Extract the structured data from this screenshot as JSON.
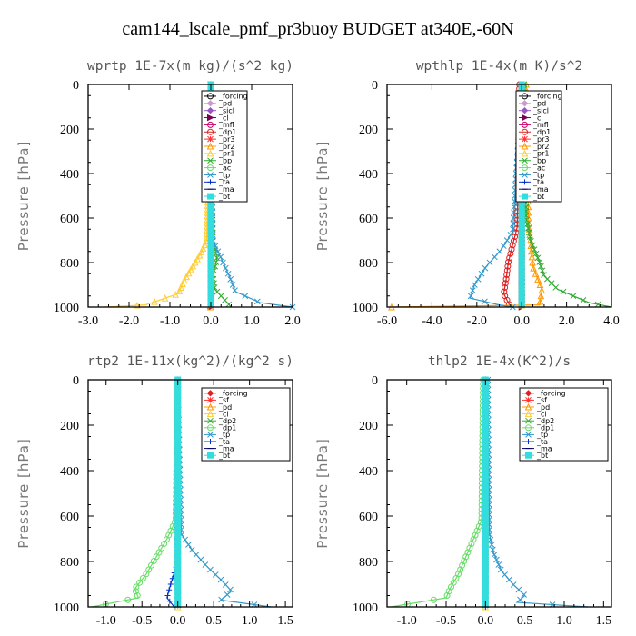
{
  "title": "cam144_lscale_pmf_pr3buoy  BUDGET at340E,-60N",
  "chart_data": [
    {
      "type": "line",
      "title": "wprtp  1E-7x(m kg)/(s^2 kg)",
      "ylabel": "Pressure [hPa]",
      "xlim": [
        -3.0,
        2.0
      ],
      "ylim": [
        1000,
        0
      ],
      "xticks": [
        "-3.0",
        "-2.0",
        "-1.0",
        "0.0",
        "1.0",
        "2.0"
      ],
      "yticks": [
        "0",
        "200",
        "400",
        "600",
        "800",
        "1000"
      ],
      "legend_position": "top-right",
      "series": [
        {
          "name": "_forcing",
          "color": "#000000",
          "marker": "circle",
          "y": [
            0,
            1000
          ],
          "x": [
            0,
            0
          ]
        },
        {
          "name": "_pd",
          "color": "#cc99cc",
          "marker": "diamond",
          "y": [
            0,
            1000
          ],
          "x": [
            0,
            0
          ]
        },
        {
          "name": "_sicl",
          "color": "#9955cc",
          "marker": "diamond",
          "y": [
            0,
            1000
          ],
          "x": [
            0,
            0
          ]
        },
        {
          "name": "_cl",
          "color": "#7a0050",
          "marker": "triangle-right",
          "y": [
            0,
            1000
          ],
          "x": [
            0,
            0
          ]
        },
        {
          "name": "_mfl",
          "color": "#cc0066",
          "marker": "circle",
          "y": [
            0,
            1000
          ],
          "x": [
            0,
            0
          ]
        },
        {
          "name": "_dp1",
          "color": "#dd2222",
          "marker": "circle",
          "y": [
            0,
            1000
          ],
          "x": [
            0,
            0
          ]
        },
        {
          "name": "_pr3",
          "color": "#ff3333",
          "marker": "star",
          "y": [
            0,
            1000
          ],
          "x": [
            0,
            0
          ]
        },
        {
          "name": "_pr2",
          "color": "#ff9900",
          "marker": "triangle",
          "y": [
            0,
            1000
          ],
          "x": [
            0,
            0
          ]
        },
        {
          "name": "_pr1",
          "color": "#ffcc33",
          "marker": "triangle",
          "y": [
            0,
            700,
            760,
            820,
            880,
            940,
            990,
            1000
          ],
          "x": [
            0,
            -0.1,
            -0.25,
            -0.45,
            -0.65,
            -0.8,
            -1.6,
            -2.6
          ]
        },
        {
          "name": "_bp",
          "color": "#33aa33",
          "marker": "x",
          "y": [
            0,
            700,
            780,
            860,
            920,
            970,
            1000
          ],
          "x": [
            0,
            0.05,
            0.15,
            0.05,
            0.1,
            0.35,
            0.5
          ]
        },
        {
          "name": "_ac",
          "color": "#66dd66",
          "marker": "circle",
          "y": [
            0,
            1000
          ],
          "x": [
            0,
            0
          ]
        },
        {
          "name": "_tp",
          "color": "#3399cc",
          "marker": "x",
          "y": [
            0,
            700,
            780,
            860,
            930,
            980,
            1000
          ],
          "x": [
            0,
            0.05,
            0.25,
            0.45,
            0.6,
            1.2,
            2.0
          ]
        },
        {
          "name": "_ta",
          "color": "#0033cc",
          "marker": "plus",
          "y": [
            0,
            1000
          ],
          "x": [
            0,
            0
          ]
        },
        {
          "name": "_ma",
          "color": "#000066",
          "marker": "dash",
          "y": [
            0,
            1000
          ],
          "x": [
            0,
            0
          ]
        },
        {
          "name": "_bt",
          "color": "#33dddd",
          "marker": "square",
          "y": [
            0,
            1000
          ],
          "x": [
            0,
            0
          ]
        }
      ]
    },
    {
      "type": "line",
      "title": "wpthlp  1E-4x(m K)/s^2",
      "ylabel": "Pressure [hPa]",
      "xlim": [
        -6.0,
        4.0
      ],
      "ylim": [
        1000,
        0
      ],
      "xticks": [
        "-6.0",
        "-4.0",
        "-2.0",
        "0.0",
        "2.0",
        "4.0"
      ],
      "yticks": [
        "0",
        "200",
        "400",
        "600",
        "800",
        "1000"
      ],
      "legend_position": "top-right",
      "series": [
        {
          "name": "_forcing",
          "color": "#000000",
          "marker": "circle",
          "y": [
            0,
            1000
          ],
          "x": [
            0,
            0
          ]
        },
        {
          "name": "_pd",
          "color": "#cc99cc",
          "marker": "diamond",
          "y": [
            0,
            1000
          ],
          "x": [
            0,
            0
          ]
        },
        {
          "name": "_sicl",
          "color": "#9955cc",
          "marker": "diamond",
          "y": [
            0,
            1000
          ],
          "x": [
            0,
            0
          ]
        },
        {
          "name": "_cl",
          "color": "#7a0050",
          "marker": "triangle-right",
          "y": [
            0,
            1000
          ],
          "x": [
            0,
            0
          ]
        },
        {
          "name": "_mfl",
          "color": "#cc0066",
          "marker": "circle",
          "y": [
            0,
            1000
          ],
          "x": [
            0,
            0
          ]
        },
        {
          "name": "_dp1",
          "color": "#dd2222",
          "marker": "circle",
          "y": [
            0,
            640,
            720,
            800,
            880,
            940,
            1000
          ],
          "x": [
            -0.1,
            -0.2,
            -0.4,
            -0.6,
            -0.7,
            -0.8,
            -0.5
          ]
        },
        {
          "name": "_pr3",
          "color": "#ff3333",
          "marker": "star",
          "y": [
            0,
            1000
          ],
          "x": [
            0,
            0
          ]
        },
        {
          "name": "_pr2",
          "color": "#ff9900",
          "marker": "triangle",
          "y": [
            0,
            600,
            720,
            820,
            920,
            990,
            1000
          ],
          "x": [
            0.2,
            0.3,
            0.4,
            0.5,
            0.9,
            0.8,
            -5.8
          ]
        },
        {
          "name": "_pr1",
          "color": "#ffcc33",
          "marker": "triangle",
          "y": [
            0,
            1000
          ],
          "x": [
            0,
            0
          ]
        },
        {
          "name": "_bp",
          "color": "#33aa33",
          "marker": "x",
          "y": [
            0,
            600,
            700,
            800,
            860,
            920,
            980,
            1000
          ],
          "x": [
            0.1,
            0.2,
            0.4,
            0.8,
            1.0,
            1.6,
            3.0,
            4.0
          ]
        },
        {
          "name": "_ac",
          "color": "#66dd66",
          "marker": "circle",
          "y": [
            0,
            1000
          ],
          "x": [
            0,
            0
          ]
        },
        {
          "name": "_tp",
          "color": "#3399cc",
          "marker": "x",
          "y": [
            0,
            660,
            740,
            820,
            900,
            960,
            990,
            1000
          ],
          "x": [
            0,
            -0.4,
            -0.9,
            -1.6,
            -2.1,
            -2.3,
            -1.0,
            -0.4
          ]
        },
        {
          "name": "_ta",
          "color": "#0033cc",
          "marker": "plus",
          "y": [
            0,
            1000
          ],
          "x": [
            0,
            0
          ]
        },
        {
          "name": "_ma",
          "color": "#000066",
          "marker": "dash",
          "y": [
            0,
            1000
          ],
          "x": [
            0,
            0
          ]
        },
        {
          "name": "_bt",
          "color": "#33dddd",
          "marker": "square",
          "y": [
            0,
            1000
          ],
          "x": [
            0,
            0
          ]
        }
      ]
    },
    {
      "type": "line",
      "title": "rtp2  1E-11x(kg^2)/(kg^2 s)",
      "ylabel": "Pressure [hPa]",
      "xlim": [
        -1.25,
        1.6
      ],
      "ylim": [
        1000,
        0
      ],
      "xticks": [
        "-1.0",
        "-0.5",
        "0.0",
        "0.5",
        "1.0",
        "1.5"
      ],
      "xtick_values": [
        -1.0,
        -0.5,
        0.0,
        0.5,
        1.0,
        1.5
      ],
      "yticks": [
        "0",
        "200",
        "400",
        "600",
        "800",
        "1000"
      ],
      "legend_position": "top-right",
      "series": [
        {
          "name": "_forcing",
          "color": "#dd2222",
          "marker": "diamond",
          "y": [
            0,
            1000
          ],
          "x": [
            0,
            0
          ]
        },
        {
          "name": "_sf",
          "color": "#ff3333",
          "marker": "star",
          "y": [
            0,
            1000
          ],
          "x": [
            0,
            0
          ]
        },
        {
          "name": "_pd",
          "color": "#ff9900",
          "marker": "triangle",
          "y": [
            0,
            1000
          ],
          "x": [
            0,
            0
          ]
        },
        {
          "name": "_cl",
          "color": "#ffcc33",
          "marker": "triangle",
          "y": [
            0,
            1000
          ],
          "x": [
            0,
            0
          ]
        },
        {
          "name": "_dp2",
          "color": "#33aa33",
          "marker": "x",
          "y": [
            0,
            1000
          ],
          "x": [
            0,
            0
          ]
        },
        {
          "name": "_dp1",
          "color": "#66dd66",
          "marker": "circle",
          "y": [
            0,
            620,
            700,
            780,
            860,
            920,
            960,
            1000
          ],
          "x": [
            0,
            -0.03,
            -0.15,
            -0.3,
            -0.45,
            -0.6,
            -0.55,
            -1.2
          ]
        },
        {
          "name": "_tp",
          "color": "#3399cc",
          "marker": "x",
          "y": [
            0,
            680,
            750,
            820,
            880,
            930,
            970,
            1000
          ],
          "x": [
            0,
            0.05,
            0.2,
            0.4,
            0.6,
            0.75,
            0.6,
            1.3
          ]
        },
        {
          "name": "_ta",
          "color": "#0033cc",
          "marker": "plus",
          "y": [
            0,
            820,
            900,
            960,
            1000
          ],
          "x": [
            0,
            -0.02,
            -0.1,
            -0.15,
            -0.05
          ]
        },
        {
          "name": "_ma",
          "color": "#000066",
          "marker": "dash",
          "y": [
            0,
            1000
          ],
          "x": [
            0,
            0
          ]
        },
        {
          "name": "_bt",
          "color": "#33dddd",
          "marker": "square",
          "y": [
            0,
            1000
          ],
          "x": [
            0,
            0
          ]
        }
      ]
    },
    {
      "type": "line",
      "title": "thlp2  1E-4x(K^2)/s",
      "ylabel": "Pressure [hPa]",
      "xlim": [
        -1.25,
        1.6
      ],
      "ylim": [
        1000,
        0
      ],
      "xticks": [
        "-1.0",
        "-0.5",
        "0.0",
        "0.5",
        "1.0",
        "1.5"
      ],
      "xtick_values": [
        -1.0,
        -0.5,
        0.0,
        0.5,
        1.0,
        1.5
      ],
      "yticks": [
        "0",
        "200",
        "400",
        "600",
        "800",
        "1000"
      ],
      "legend_position": "top-right",
      "series": [
        {
          "name": "_forcing",
          "color": "#dd2222",
          "marker": "diamond",
          "y": [
            0,
            1000
          ],
          "x": [
            0,
            0
          ]
        },
        {
          "name": "_sf",
          "color": "#ff3333",
          "marker": "star",
          "y": [
            0,
            1000
          ],
          "x": [
            0,
            0
          ]
        },
        {
          "name": "_pd",
          "color": "#ff9900",
          "marker": "triangle",
          "y": [
            0,
            1000
          ],
          "x": [
            0,
            0
          ]
        },
        {
          "name": "_cl",
          "color": "#ffcc33",
          "marker": "triangle",
          "y": [
            0,
            1000
          ],
          "x": [
            0,
            0
          ]
        },
        {
          "name": "_dp2",
          "color": "#33aa33",
          "marker": "x",
          "y": [
            0,
            1000
          ],
          "x": [
            0,
            0
          ]
        },
        {
          "name": "_dp1",
          "color": "#66dd66",
          "marker": "circle",
          "y": [
            0,
            620,
            700,
            780,
            860,
            920,
            960,
            1000
          ],
          "x": [
            -0.03,
            -0.05,
            -0.15,
            -0.25,
            -0.35,
            -0.45,
            -0.5,
            -1.2
          ]
        },
        {
          "name": "_tp",
          "color": "#3399cc",
          "marker": "x",
          "y": [
            0,
            680,
            760,
            840,
            900,
            950,
            980,
            1000
          ],
          "x": [
            0.03,
            0.05,
            0.1,
            0.2,
            0.35,
            0.5,
            0.4,
            1.3
          ]
        },
        {
          "name": "_ta",
          "color": "#0033cc",
          "marker": "plus",
          "y": [
            0,
            1000
          ],
          "x": [
            0,
            0
          ]
        },
        {
          "name": "_ma",
          "color": "#000066",
          "marker": "dash",
          "y": [
            0,
            1000
          ],
          "x": [
            0,
            0
          ]
        },
        {
          "name": "_bt",
          "color": "#33dddd",
          "marker": "square",
          "y": [
            0,
            1000
          ],
          "x": [
            0,
            0
          ]
        }
      ]
    }
  ]
}
